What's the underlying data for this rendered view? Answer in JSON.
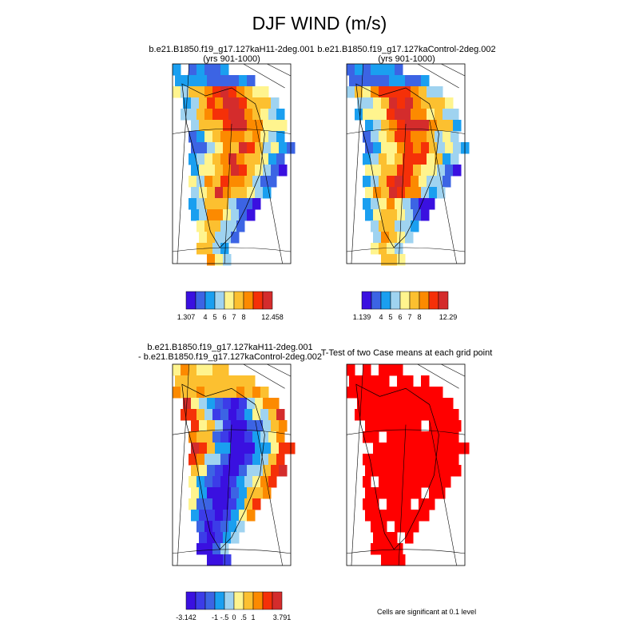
{
  "title": "DJF WIND (m/s)",
  "chart_data": [
    {
      "type": "heatmap",
      "title": "b.e21.B1850.f19_g17.127kaH11-2deg.001",
      "subtitle": "(yrs 901-1000)",
      "scale_min": 1.307,
      "scale_max": 12.458,
      "colorbar_labels": [
        "1.307",
        "4",
        "5",
        "6",
        "7",
        "8",
        "12.458"
      ],
      "colors": [
        "#3a10e0",
        "#3c64e4",
        "#1a9ff0",
        "#9fd3f0",
        "#fff48e",
        "#fcc030",
        "#fc8a00",
        "#f53008",
        "#d42c2c"
      ]
    },
    {
      "type": "heatmap",
      "title": "b.e21.B1850.f19_g17.127kaControl-2deg.002",
      "subtitle": "(yrs 901-1000)",
      "scale_min": 1.139,
      "scale_max": 12.29,
      "colorbar_labels": [
        "1.139",
        "4",
        "5",
        "6",
        "7",
        "8",
        "12.29"
      ],
      "colors": [
        "#3a10e0",
        "#3c64e4",
        "#1a9ff0",
        "#9fd3f0",
        "#fff48e",
        "#fcc030",
        "#fc8a00",
        "#f53008",
        "#d42c2c"
      ]
    },
    {
      "type": "heatmap",
      "title": "b.e21.B1850.f19_g17.127kaH11-2deg.001",
      "subtitle": "- b.e21.B1850.f19_g17.127kaControl-2deg.002",
      "scale_min": -3.142,
      "scale_max": 3.791,
      "colorbar_labels": [
        "-3.142",
        "-1",
        "-.5",
        "0",
        ".5",
        "1",
        "3.791"
      ],
      "colors": [
        "#3a10e0",
        "#3c3ce8",
        "#3c64e4",
        "#1a9ff0",
        "#9fd3f0",
        "#fff48e",
        "#fcc030",
        "#fc8a00",
        "#f53008",
        "#d42c2c"
      ]
    },
    {
      "type": "heatmap",
      "title": "T-Test of two Case means at each grid point",
      "note": "Cells are significant at 0.1 level",
      "colors": [
        "#ff0000"
      ]
    }
  ]
}
